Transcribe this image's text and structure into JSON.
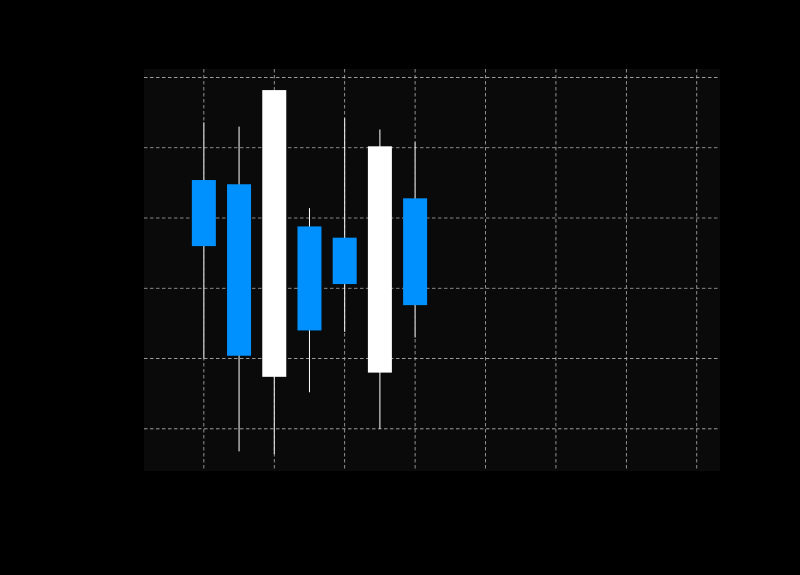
{
  "chart_data": {
    "type": "candlestick",
    "title": "",
    "xlabel": "",
    "ylabel": "",
    "grid": true,
    "xlim": [
      0.15,
      8.33
    ],
    "ylim": [
      17,
      45.6
    ],
    "xticks": [
      1,
      2,
      3,
      4,
      5,
      6,
      7,
      8
    ],
    "yticks": [
      20,
      25,
      30,
      35,
      40,
      45
    ],
    "candles": [
      {
        "x": 1.0,
        "open": 37.7,
        "close": 33.0,
        "high": 41.8,
        "low": 25.0,
        "direction": "down"
      },
      {
        "x": 1.5,
        "open": 37.4,
        "close": 25.2,
        "high": 41.5,
        "low": 18.4,
        "direction": "down"
      },
      {
        "x": 2.0,
        "open": 23.7,
        "close": 44.1,
        "high": 44.1,
        "low": 18.2,
        "direction": "up"
      },
      {
        "x": 2.5,
        "open": 34.4,
        "close": 27.0,
        "high": 35.7,
        "low": 22.6,
        "direction": "down"
      },
      {
        "x": 3.0,
        "open": 33.6,
        "close": 30.3,
        "high": 42.1,
        "low": 26.9,
        "direction": "down"
      },
      {
        "x": 3.5,
        "open": 24.0,
        "close": 40.1,
        "high": 41.3,
        "low": 20.0,
        "direction": "up"
      },
      {
        "x": 4.0,
        "open": 36.4,
        "close": 28.8,
        "high": 40.4,
        "low": 26.5,
        "direction": "down"
      }
    ],
    "colors": {
      "up": "#ffffff",
      "down": "#0091ff",
      "wick": "#ffffff",
      "plot_bg": "#0a0a0a",
      "page_bg": "#000000",
      "grid": "#b0b0b0"
    }
  }
}
